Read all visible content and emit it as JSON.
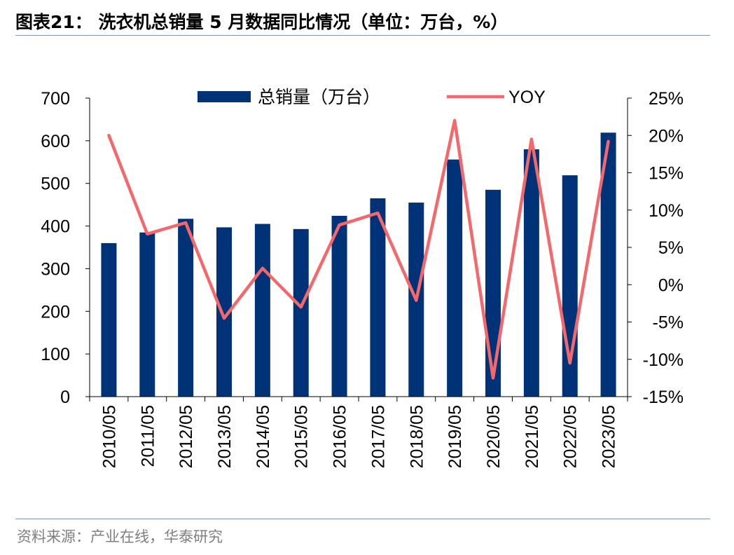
{
  "title": "图表21： 洗衣机总销量 5 月数据同比情况（单位：万台，%）",
  "source": "资料来源：产业在线，华泰研究",
  "colors": {
    "bar": "#003278",
    "line": "#f4676a",
    "axis": "#000000"
  },
  "chart_data": {
    "type": "bar+line",
    "categories": [
      "2010/05",
      "2011/05",
      "2012/05",
      "2013/05",
      "2014/05",
      "2015/05",
      "2016/05",
      "2017/05",
      "2018/05",
      "2019/05",
      "2020/05",
      "2021/05",
      "2022/05",
      "2023/05"
    ],
    "series": [
      {
        "name": "总销量（万台）",
        "type": "bar",
        "axis": "left",
        "values": [
          360,
          385,
          417,
          397,
          405,
          393,
          424,
          465,
          455,
          556,
          485,
          580,
          519,
          619
        ]
      },
      {
        "name": "YOY",
        "type": "line",
        "axis": "right",
        "values": [
          20.0,
          6.8,
          8.3,
          -4.5,
          2.2,
          -3.0,
          8.0,
          9.6,
          -2.1,
          22.0,
          -12.5,
          19.5,
          -10.5,
          19.2
        ]
      }
    ],
    "y_left": {
      "lim": [
        0,
        700
      ],
      "ticks": [
        "0",
        "100",
        "200",
        "300",
        "400",
        "500",
        "600",
        "700"
      ]
    },
    "y_right": {
      "lim": [
        -15,
        25
      ],
      "ticks": [
        "-15%",
        "-10%",
        "-5%",
        "0%",
        "5%",
        "10%",
        "15%",
        "20%",
        "25%"
      ]
    },
    "legend_position": "top",
    "grid": false
  }
}
